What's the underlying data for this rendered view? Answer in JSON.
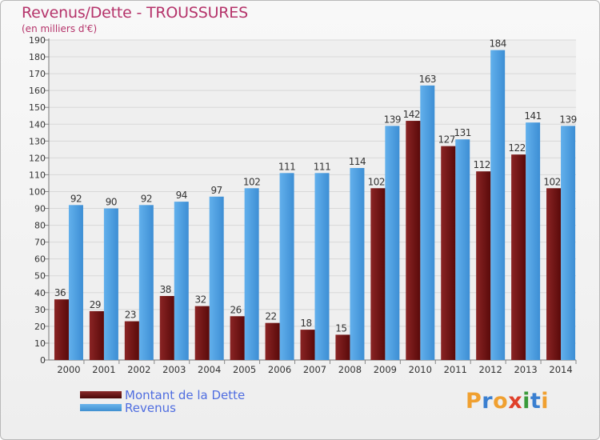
{
  "header": {
    "title": "Revenus/Dette - TROUSSURES",
    "subtitle": "(en milliers d'€)"
  },
  "legend": {
    "items": [
      {
        "label": "Montant de la Dette",
        "color": "#6b1414"
      },
      {
        "label": "Revenus",
        "color": "#4ea0e0"
      }
    ]
  },
  "logo": {
    "text": "Proxiti",
    "letters": [
      {
        "char": "P",
        "color": "#f0a030"
      },
      {
        "char": "r",
        "color": "#3a7fd0"
      },
      {
        "char": "o",
        "color": "#f0a030"
      },
      {
        "char": "x",
        "color": "#e0402a"
      },
      {
        "char": "i",
        "color": "#3a9a3a"
      },
      {
        "char": "t",
        "color": "#3a7fd0"
      },
      {
        "char": "i",
        "color": "#f0a030"
      }
    ]
  },
  "chart_data": {
    "type": "bar",
    "title": "Revenus/Dette - TROUSSURES",
    "subtitle": "(en milliers d'€)",
    "categories": [
      "2000",
      "2001",
      "2002",
      "2003",
      "2004",
      "2005",
      "2006",
      "2007",
      "2008",
      "2009",
      "2010",
      "2011",
      "2012",
      "2013",
      "2014"
    ],
    "series": [
      {
        "name": "Montant de la Dette",
        "color": "#6b1414",
        "values": [
          36,
          29,
          23,
          38,
          32,
          26,
          22,
          18,
          15,
          102,
          142,
          127,
          112,
          122,
          102
        ]
      },
      {
        "name": "Revenus",
        "color": "#4ea0e0",
        "values": [
          92,
          90,
          92,
          94,
          97,
          102,
          111,
          111,
          114,
          139,
          163,
          131,
          184,
          141,
          139
        ]
      }
    ],
    "yticks": [
      0,
      10,
      20,
      30,
      40,
      50,
      60,
      70,
      80,
      90,
      100,
      110,
      120,
      130,
      140,
      150,
      160,
      170,
      180,
      190
    ],
    "ylim": [
      0,
      190
    ],
    "grid": true,
    "legend_position": "bottom-left"
  }
}
